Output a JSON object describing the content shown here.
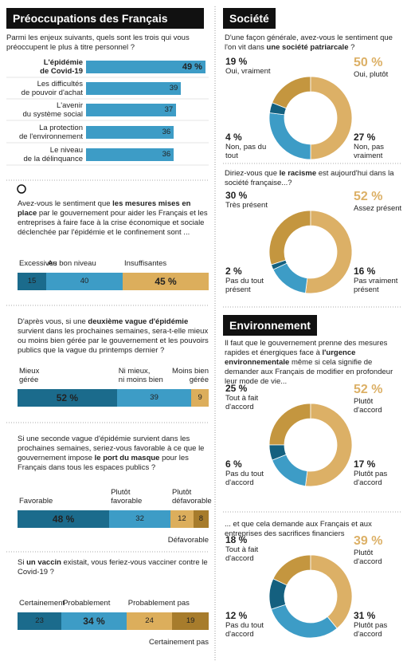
{
  "left": {
    "title": "Préoccupations des Français",
    "ranking": {
      "question": [
        "Parmi les enjeux suivants, quels sont les trois qui vous préoccupent le plus à titre personnel ?"
      ],
      "categories": [
        "L'épidémie\nde Covid-19",
        "Les difficultés\nde pouvoir d'achat",
        "L'avenir\ndu système social",
        "La protection\nde l'environnement",
        "Le niveau\nde la délinquance"
      ],
      "values": [
        49,
        39,
        37,
        36,
        36
      ],
      "value_labels": [
        "49 %",
        "39",
        "37",
        "36",
        "36"
      ],
      "color": "#3d9cc6"
    },
    "stacked": [
      {
        "question": [
          "Avez-vous le sentiment que ",
          "les mesures mises en place",
          " par le gouvernement pour aider les Français et les entreprises à faire face à la crise économique et sociale déclenchée par l'épidémie et le confinement sont ..."
        ],
        "categories": [
          "Excessives",
          "Au bon niveau",
          "Insuffisantes"
        ],
        "values": [
          15,
          40,
          45
        ],
        "value_labels": [
          "15",
          "40",
          "45 %"
        ],
        "colors": [
          "#1b6b8c",
          "#3d9cc6",
          "#dcae5c"
        ]
      },
      {
        "question": [
          "D'après vous, si une ",
          "deuxième vague d'épidémie",
          " survient dans les prochaines semaines, sera-t-elle mieux ou moins bien gérée par le gouvernement et les pouvoirs publics que la vague du printemps dernier ?"
        ],
        "categories": [
          "Mieux\ngérée",
          "Ni mieux,\nni moins bien",
          "Moins bien\ngérée"
        ],
        "values": [
          52,
          39,
          9
        ],
        "value_labels": [
          "52 %",
          "39",
          "9"
        ],
        "colors": [
          "#1b6b8c",
          "#3d9cc6",
          "#dcae5c"
        ]
      },
      {
        "question": [
          "Si une seconde vague d'épidémie survient dans les prochaines semaines, seriez-vous favorable à ce que le gouvernement impose ",
          "le port du masque",
          " pour les Français dans tous les espaces publics ?"
        ],
        "categories": [
          "Favorable",
          "Plutôt\nfavorable",
          "Plutôt\ndéfavorable",
          "Défavorable"
        ],
        "values": [
          48,
          32,
          12,
          8
        ],
        "value_labels": [
          "48 %",
          "32",
          "12",
          "8"
        ],
        "colors": [
          "#1b6b8c",
          "#3d9cc6",
          "#dcae5c",
          "#a77c2c"
        ]
      },
      {
        "question": [
          "Si ",
          "un vaccin",
          " existait, vous feriez-vous vacciner contre le Covid-19 ?"
        ],
        "categories": [
          "Certainement",
          "Probablement",
          "Probablement pas",
          "Certainement pas"
        ],
        "values": [
          23,
          34,
          24,
          19
        ],
        "value_labels": [
          "23",
          "34 %",
          "24",
          "19"
        ],
        "colors": [
          "#1b6b8c",
          "#3d9cc6",
          "#dcae5c",
          "#a77c2c"
        ]
      }
    ]
  },
  "right": {
    "sections": [
      {
        "title": "Société",
        "donuts": [
          {
            "question": [
              "D'une façon générale, avez-vous le sentiment que l'on vit dans ",
              "une société patriarcale",
              " ?"
            ],
            "categories": [
              "Oui, vraiment",
              "Oui, plutôt",
              "Non, pas\nvraiment",
              "Non, pas du tout"
            ],
            "values": [
              19,
              50,
              27,
              4
            ],
            "value_labels": [
              "19 %",
              "50 %",
              "27 %",
              "4 %"
            ],
            "colors": [
              "#c4963f",
              "#dcb066",
              "#3d9cc6",
              "#14607f"
            ]
          },
          {
            "question": [
              "Diriez-vous que ",
              "le racisme",
              " est aujourd'hui dans la société française...?"
            ],
            "categories": [
              "Très présent",
              "Assez présent",
              "Pas vraiment\nprésent",
              "Pas du tout\nprésent"
            ],
            "values": [
              30,
              52,
              16,
              2
            ],
            "value_labels": [
              "30 %",
              "52 %",
              "16 %",
              "2 %"
            ],
            "colors": [
              "#c4963f",
              "#dcb066",
              "#3d9cc6",
              "#14607f"
            ]
          }
        ]
      },
      {
        "title": "Environnement",
        "donuts": [
          {
            "question": [
              "Il faut que le gouvernement prenne des mesures rapides et énergiques face à ",
              "l'urgence environnementale",
              " même si cela signifie de demander aux Français de modifier en profondeur leur mode de vie..."
            ],
            "categories": [
              "Tout à fait\nd'accord",
              "Plutôt\nd'accord",
              "Plutôt pas\nd'accord",
              "Pas du tout\nd'accord"
            ],
            "values": [
              25,
              52,
              17,
              6
            ],
            "value_labels": [
              "25 %",
              "52 %",
              "17 %",
              "6 %"
            ],
            "colors": [
              "#c4963f",
              "#dcb066",
              "#3d9cc6",
              "#14607f"
            ]
          },
          {
            "question": [
              "... et que cela demande aux Français et aux entreprises des sacrifices financiers"
            ],
            "categories": [
              "Tout à fait\nd'accord",
              "Plutôt\nd'accord",
              "Plutôt pas\nd'accord",
              "Pas du tout\nd'accord"
            ],
            "values": [
              18,
              39,
              31,
              12
            ],
            "value_labels": [
              "18 %",
              "39 %",
              "31 %",
              "12 %"
            ],
            "colors": [
              "#c4963f",
              "#dcb066",
              "#3d9cc6",
              "#14607f"
            ]
          }
        ]
      }
    ]
  }
}
